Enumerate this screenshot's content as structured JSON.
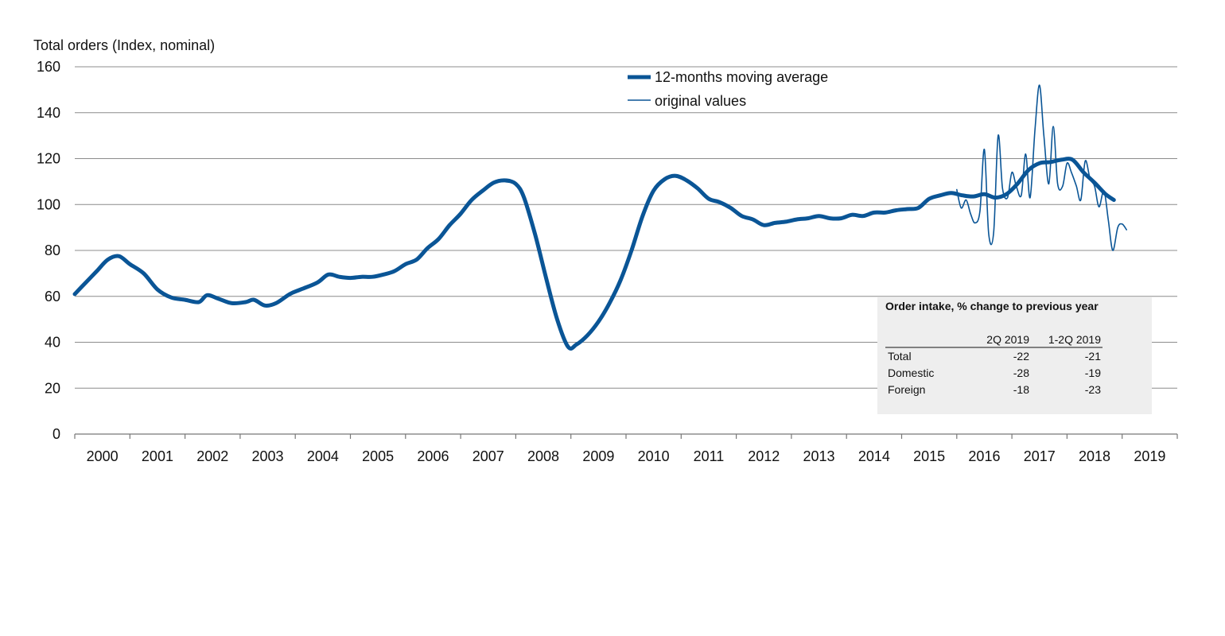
{
  "chart_data": {
    "type": "line",
    "title": "",
    "ylabel": "Total orders (Index, nominal)",
    "xlabel": "",
    "ylim": [
      0,
      160
    ],
    "yticks": [
      0,
      20,
      40,
      60,
      80,
      100,
      120,
      140,
      160
    ],
    "x_start_year": 2000,
    "x_end_year": 2020,
    "xtick_labels": [
      "2000",
      "2001",
      "2002",
      "2003",
      "2004",
      "2005",
      "2006",
      "2007",
      "2008",
      "2009",
      "2010",
      "2011",
      "2012",
      "2013",
      "2014",
      "2015",
      "2016",
      "2017",
      "2018",
      "2019"
    ],
    "grid": true,
    "legend_position": "top-center",
    "series": [
      {
        "name": "12-months moving average",
        "style": "thick",
        "color": "#0a5596",
        "points": [
          [
            2000.0,
            61
          ],
          [
            2000.2,
            66
          ],
          [
            2000.4,
            71
          ],
          [
            2000.6,
            76
          ],
          [
            2000.8,
            77.5
          ],
          [
            2001.0,
            74
          ],
          [
            2001.25,
            70
          ],
          [
            2001.5,
            63
          ],
          [
            2001.75,
            59.5
          ],
          [
            2002.0,
            58.5
          ],
          [
            2002.25,
            57.5
          ],
          [
            2002.4,
            60.5
          ],
          [
            2002.6,
            59
          ],
          [
            2002.85,
            57
          ],
          [
            2003.1,
            57.5
          ],
          [
            2003.25,
            58.5
          ],
          [
            2003.45,
            56
          ],
          [
            2003.65,
            57
          ],
          [
            2003.9,
            61
          ],
          [
            2004.1,
            63
          ],
          [
            2004.4,
            66
          ],
          [
            2004.6,
            69.5
          ],
          [
            2004.8,
            68.5
          ],
          [
            2005.0,
            68
          ],
          [
            2005.2,
            68.5
          ],
          [
            2005.4,
            68.5
          ],
          [
            2005.6,
            69.5
          ],
          [
            2005.8,
            71
          ],
          [
            2006.0,
            74
          ],
          [
            2006.2,
            76
          ],
          [
            2006.4,
            81
          ],
          [
            2006.6,
            85
          ],
          [
            2006.8,
            91
          ],
          [
            2007.0,
            96
          ],
          [
            2007.2,
            102
          ],
          [
            2007.4,
            106
          ],
          [
            2007.6,
            109.5
          ],
          [
            2007.8,
            110.5
          ],
          [
            2008.0,
            109
          ],
          [
            2008.15,
            103
          ],
          [
            2008.35,
            87
          ],
          [
            2008.55,
            68
          ],
          [
            2008.75,
            50
          ],
          [
            2008.95,
            38
          ],
          [
            2009.1,
            39
          ],
          [
            2009.3,
            43
          ],
          [
            2009.5,
            49
          ],
          [
            2009.7,
            57
          ],
          [
            2009.9,
            67
          ],
          [
            2010.1,
            80
          ],
          [
            2010.3,
            95
          ],
          [
            2010.5,
            106
          ],
          [
            2010.7,
            111
          ],
          [
            2010.9,
            112.5
          ],
          [
            2011.1,
            110.5
          ],
          [
            2011.3,
            107
          ],
          [
            2011.5,
            102.5
          ],
          [
            2011.7,
            101
          ],
          [
            2011.9,
            98.5
          ],
          [
            2012.1,
            95
          ],
          [
            2012.3,
            93.5
          ],
          [
            2012.5,
            91
          ],
          [
            2012.7,
            92
          ],
          [
            2012.9,
            92.5
          ],
          [
            2013.1,
            93.5
          ],
          [
            2013.3,
            94
          ],
          [
            2013.5,
            95
          ],
          [
            2013.7,
            94
          ],
          [
            2013.9,
            94
          ],
          [
            2014.1,
            95.5
          ],
          [
            2014.3,
            95
          ],
          [
            2014.5,
            96.5
          ],
          [
            2014.7,
            96.5
          ],
          [
            2014.9,
            97.5
          ],
          [
            2015.1,
            98
          ],
          [
            2015.3,
            98.5
          ],
          [
            2015.5,
            102.5
          ],
          [
            2015.7,
            104
          ],
          [
            2015.9,
            105
          ],
          [
            2016.1,
            104
          ],
          [
            2016.3,
            103.5
          ],
          [
            2016.5,
            104.5
          ],
          [
            2016.7,
            103
          ],
          [
            2016.9,
            104.5
          ],
          [
            2017.1,
            109
          ],
          [
            2017.3,
            115
          ],
          [
            2017.5,
            118
          ],
          [
            2017.7,
            118.5
          ],
          [
            2017.9,
            119.5
          ],
          [
            2018.1,
            119.5
          ],
          [
            2018.3,
            114
          ],
          [
            2018.5,
            109.5
          ],
          [
            2018.7,
            104.5
          ],
          [
            2018.85,
            102
          ]
        ]
      },
      {
        "name": "original values",
        "style": "thin",
        "color": "#0a5596",
        "points": [
          [
            2016.0,
            106.5
          ],
          [
            2016.08,
            98.5
          ],
          [
            2016.17,
            102
          ],
          [
            2016.25,
            96
          ],
          [
            2016.33,
            92
          ],
          [
            2016.42,
            97
          ],
          [
            2016.5,
            124
          ],
          [
            2016.58,
            87
          ],
          [
            2016.67,
            88
          ],
          [
            2016.75,
            130
          ],
          [
            2016.83,
            107
          ],
          [
            2016.92,
            103
          ],
          [
            2017.0,
            114
          ],
          [
            2017.08,
            108
          ],
          [
            2017.17,
            104
          ],
          [
            2017.25,
            122
          ],
          [
            2017.33,
            103
          ],
          [
            2017.42,
            133
          ],
          [
            2017.5,
            152
          ],
          [
            2017.58,
            130
          ],
          [
            2017.67,
            109
          ],
          [
            2017.75,
            134
          ],
          [
            2017.83,
            109
          ],
          [
            2017.92,
            108
          ],
          [
            2018.0,
            118
          ],
          [
            2018.08,
            114
          ],
          [
            2018.17,
            108
          ],
          [
            2018.25,
            102
          ],
          [
            2018.33,
            119
          ],
          [
            2018.42,
            111
          ],
          [
            2018.5,
            108
          ],
          [
            2018.58,
            99
          ],
          [
            2018.67,
            106
          ],
          [
            2018.75,
            93
          ],
          [
            2018.83,
            80
          ],
          [
            2018.92,
            90
          ],
          [
            2019.0,
            91.5
          ],
          [
            2019.08,
            89
          ]
        ]
      }
    ]
  },
  "inset_table": {
    "title": "Order intake, % change to previous year",
    "columns": [
      "2Q 2019",
      "1-2Q 2019"
    ],
    "rows": [
      {
        "label": "Total",
        "values": [
          "-22",
          "-21"
        ]
      },
      {
        "label": "Domestic",
        "values": [
          "-28",
          "-19"
        ]
      },
      {
        "label": "Foreign",
        "values": [
          "-18",
          "-23"
        ]
      }
    ]
  },
  "colors": {
    "series": "#0a5596",
    "grid": "#8c8c8c",
    "inset_bg": "#eeeeee"
  }
}
